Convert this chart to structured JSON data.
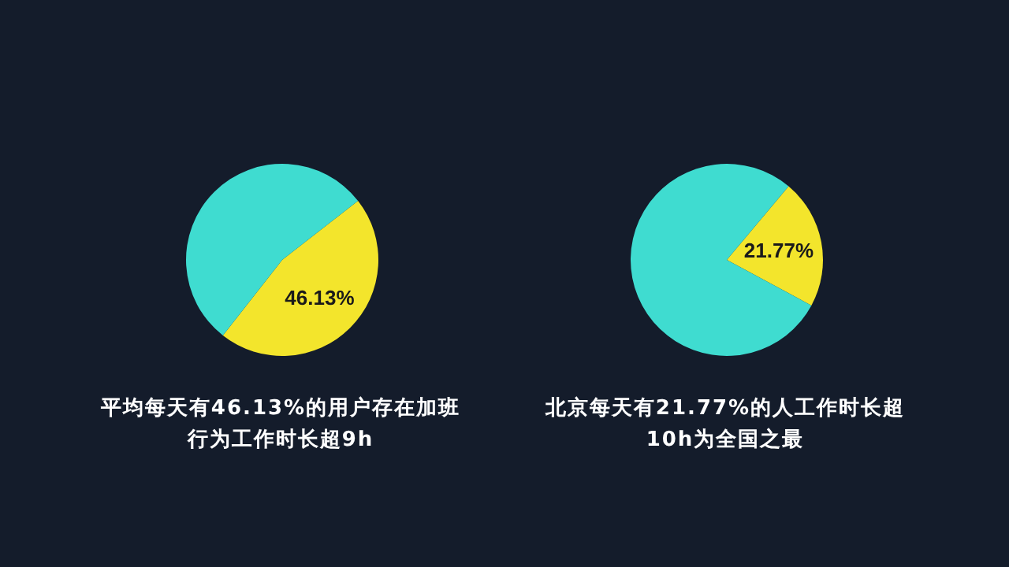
{
  "chart_data": [
    {
      "type": "pie",
      "categories": [
        null,
        null
      ],
      "values": [
        46.13,
        53.87
      ],
      "colors": [
        "#f3e52c",
        "#3fdcd0"
      ],
      "value_labels": [
        "46.13%",
        null
      ],
      "title": "平均每天有46.13%的用户存在加班行为工作时长超9h"
    },
    {
      "type": "pie",
      "categories": [
        null,
        null
      ],
      "values": [
        21.77,
        78.23
      ],
      "colors": [
        "#f3e52c",
        "#3fdcd0"
      ],
      "value_labels": [
        "21.77%",
        null
      ],
      "title": "北京每天有21.77%的人工作时长超10h为全国之最"
    }
  ]
}
